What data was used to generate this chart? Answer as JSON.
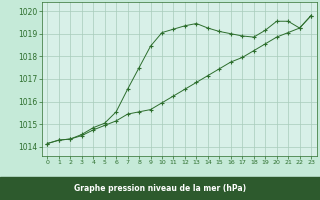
{
  "title": "Graphe pression niveau de la mer (hPa)",
  "bg_color": "#c5ead8",
  "plot_bg_color": "#d8f0e8",
  "grid_color": "#a8ccbb",
  "line_color": "#2d6e2d",
  "marker": "+",
  "xlim": [
    -0.5,
    23.5
  ],
  "ylim": [
    1013.6,
    1020.4
  ],
  "yticks": [
    1014,
    1015,
    1016,
    1017,
    1018,
    1019,
    1020
  ],
  "xticks": [
    0,
    1,
    2,
    3,
    4,
    5,
    6,
    7,
    8,
    9,
    10,
    11,
    12,
    13,
    14,
    15,
    16,
    17,
    18,
    19,
    20,
    21,
    22,
    23
  ],
  "line1_x": [
    0,
    1,
    2,
    3,
    4,
    5,
    6,
    7,
    8,
    9,
    10,
    11,
    12,
    13,
    14,
    15,
    16,
    17,
    18,
    19,
    20,
    21,
    22,
    23
  ],
  "line1_y": [
    1014.15,
    1014.3,
    1014.35,
    1014.5,
    1014.75,
    1014.95,
    1015.15,
    1015.45,
    1015.55,
    1015.65,
    1015.95,
    1016.25,
    1016.55,
    1016.85,
    1017.15,
    1017.45,
    1017.75,
    1017.95,
    1018.25,
    1018.55,
    1018.85,
    1019.05,
    1019.25,
    1019.8
  ],
  "line2_x": [
    0,
    1,
    2,
    3,
    4,
    5,
    6,
    7,
    8,
    9,
    10,
    11,
    12,
    13,
    14,
    15,
    16,
    17,
    18,
    19,
    20,
    21,
    22,
    23
  ],
  "line2_y": [
    1014.15,
    1014.3,
    1014.35,
    1014.55,
    1014.85,
    1015.05,
    1015.55,
    1016.55,
    1017.5,
    1018.45,
    1019.05,
    1019.2,
    1019.35,
    1019.45,
    1019.25,
    1019.1,
    1019.0,
    1018.9,
    1018.85,
    1019.15,
    1019.55,
    1019.55,
    1019.25,
    1019.8
  ]
}
